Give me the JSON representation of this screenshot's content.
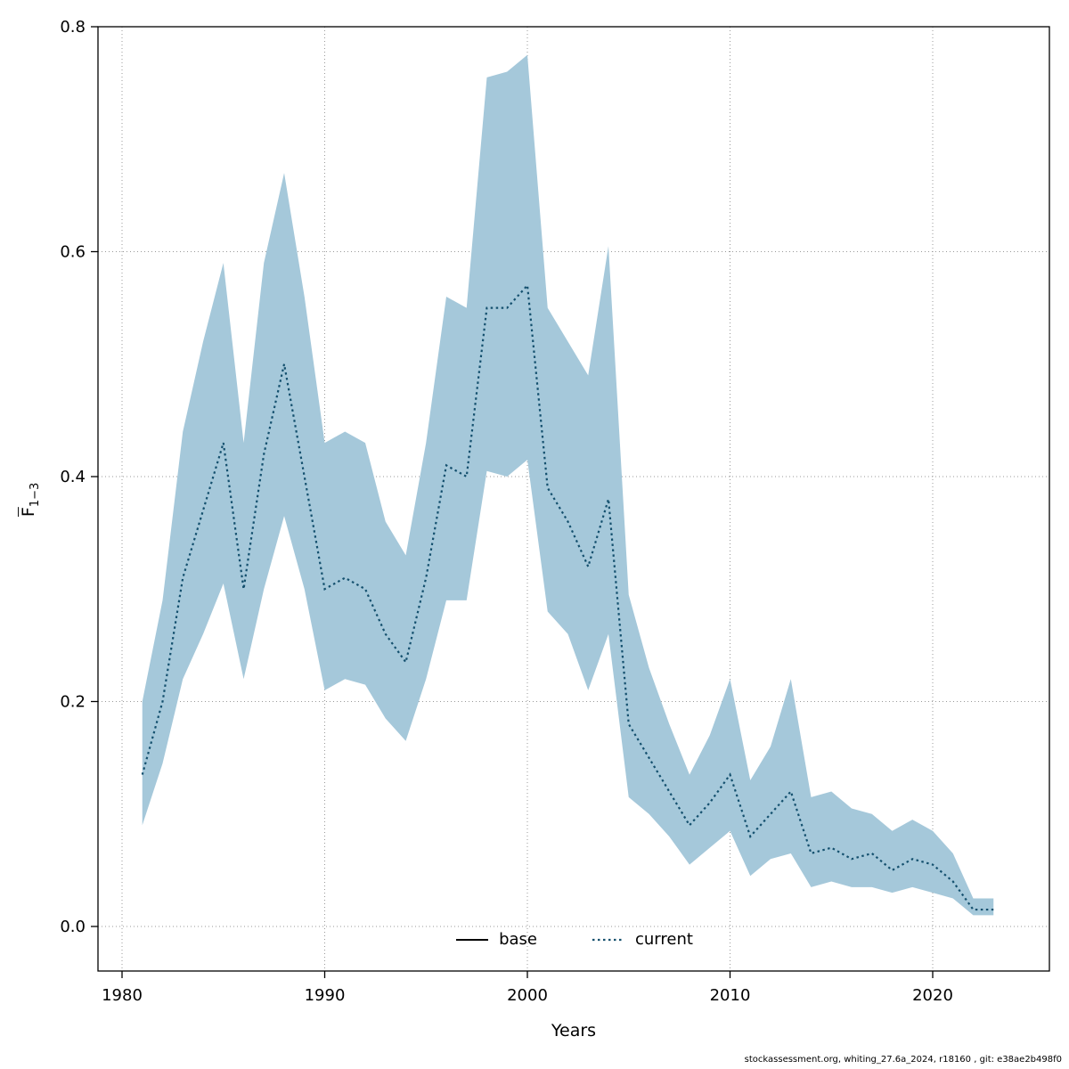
{
  "footer": {
    "text": "stockassessment.org, whiting_27.6a_2024, r18160 , git: e38ae2b498f0"
  },
  "chart_data": {
    "type": "line",
    "title": "",
    "xlabel": "Years",
    "ylabel_parts": {
      "letter": "F",
      "subscript": "1−3"
    },
    "x_ticks": [
      1980,
      1990,
      2000,
      2010,
      2020
    ],
    "y_ticks": [
      0.0,
      0.2,
      0.4,
      0.6,
      0.8
    ],
    "xlim": [
      1978.8,
      2025.8
    ],
    "ylim": [
      -0.04,
      0.8
    ],
    "grid": true,
    "legend_position": "bottom-center-inside",
    "legend": {
      "base": "base",
      "current": "current"
    },
    "base_color": "#000000",
    "series_color": "#14506e",
    "band_color": "#a5c8da",
    "years": [
      1981,
      1982,
      1983,
      1984,
      1985,
      1986,
      1987,
      1988,
      1989,
      1990,
      1991,
      1992,
      1993,
      1994,
      1995,
      1996,
      1997,
      1998,
      1999,
      2000,
      2001,
      2002,
      2003,
      2004,
      2005,
      2006,
      2007,
      2008,
      2009,
      2010,
      2011,
      2012,
      2013,
      2014,
      2015,
      2016,
      2017,
      2018,
      2019,
      2020,
      2021,
      2022,
      2023
    ],
    "current": [
      0.135,
      0.2,
      0.31,
      0.37,
      0.43,
      0.3,
      0.42,
      0.5,
      0.4,
      0.3,
      0.31,
      0.3,
      0.26,
      0.235,
      0.31,
      0.41,
      0.4,
      0.55,
      0.55,
      0.57,
      0.39,
      0.36,
      0.32,
      0.38,
      0.18,
      0.15,
      0.12,
      0.09,
      0.11,
      0.135,
      0.08,
      0.1,
      0.12,
      0.065,
      0.07,
      0.06,
      0.065,
      0.05,
      0.06,
      0.055,
      0.04,
      0.015,
      0.015
    ],
    "lower": [
      0.09,
      0.145,
      0.22,
      0.26,
      0.305,
      0.22,
      0.3,
      0.365,
      0.3,
      0.21,
      0.22,
      0.215,
      0.185,
      0.165,
      0.22,
      0.29,
      0.29,
      0.405,
      0.4,
      0.415,
      0.28,
      0.26,
      0.21,
      0.26,
      0.115,
      0.1,
      0.08,
      0.055,
      0.07,
      0.085,
      0.045,
      0.06,
      0.065,
      0.035,
      0.04,
      0.035,
      0.035,
      0.03,
      0.035,
      0.03,
      0.025,
      0.01,
      0.01
    ],
    "upper": [
      0.2,
      0.29,
      0.44,
      0.52,
      0.59,
      0.43,
      0.59,
      0.67,
      0.56,
      0.43,
      0.44,
      0.43,
      0.36,
      0.33,
      0.43,
      0.56,
      0.55,
      0.755,
      0.76,
      0.775,
      0.55,
      0.52,
      0.49,
      0.605,
      0.295,
      0.23,
      0.18,
      0.135,
      0.17,
      0.22,
      0.13,
      0.16,
      0.22,
      0.115,
      0.12,
      0.105,
      0.1,
      0.085,
      0.095,
      0.085,
      0.065,
      0.025,
      0.025
    ]
  }
}
